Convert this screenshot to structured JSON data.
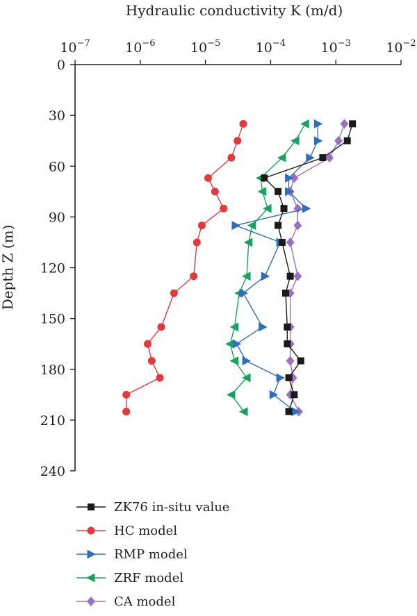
{
  "chart_data": {
    "type": "line",
    "xlabel": "Hydraulic conductivity K (m/d)",
    "ylabel": "Depth Z (m)",
    "x_scale": "log",
    "xlim": [
      1e-07,
      0.01
    ],
    "ylim": [
      0,
      240
    ],
    "y_inverted": true,
    "x_ticks": [
      {
        "base": "10",
        "exp": "−7",
        "value": 1e-07
      },
      {
        "base": "10",
        "exp": "−6",
        "value": 1e-06
      },
      {
        "base": "10",
        "exp": "−5",
        "value": 1e-05
      },
      {
        "base": "10",
        "exp": "−4",
        "value": 0.0001
      },
      {
        "base": "10",
        "exp": "−3",
        "value": 0.001
      },
      {
        "base": "10",
        "exp": "−2",
        "value": 0.01
      }
    ],
    "y_ticks": [
      0,
      30,
      60,
      90,
      120,
      150,
      180,
      210,
      240
    ],
    "grid": false,
    "legend_position": "bottom-left",
    "series": [
      {
        "name": "ZK76 in-situ value",
        "color": "#1a1a1a",
        "marker": "square",
        "points": [
          {
            "depth": 35,
            "k": 0.0018
          },
          {
            "depth": 45,
            "k": 0.0015
          },
          {
            "depth": 55,
            "k": 0.00063
          },
          {
            "depth": 67,
            "k": 8e-05
          },
          {
            "depth": 75,
            "k": 0.00013
          },
          {
            "depth": 85,
            "k": 0.00016
          },
          {
            "depth": 95,
            "k": 0.00013
          },
          {
            "depth": 105,
            "k": 0.00015
          },
          {
            "depth": 125,
            "k": 0.0002
          },
          {
            "depth": 135,
            "k": 0.00017
          },
          {
            "depth": 155,
            "k": 0.00018
          },
          {
            "depth": 165,
            "k": 0.00018
          },
          {
            "depth": 175,
            "k": 0.00029
          },
          {
            "depth": 185,
            "k": 0.00019
          },
          {
            "depth": 195,
            "k": 0.00023
          },
          {
            "depth": 205,
            "k": 0.00019
          }
        ]
      },
      {
        "name": "HC model",
        "color": "#e8383b",
        "marker": "circle",
        "points": [
          {
            "depth": 35,
            "k": 3.8e-05
          },
          {
            "depth": 45,
            "k": 3.1e-05
          },
          {
            "depth": 55,
            "k": 2.5e-05
          },
          {
            "depth": 67,
            "k": 1.1e-05
          },
          {
            "depth": 75,
            "k": 1.4e-05
          },
          {
            "depth": 85,
            "k": 1.9e-05
          },
          {
            "depth": 95,
            "k": 8.8e-06
          },
          {
            "depth": 105,
            "k": 7.4e-06
          },
          {
            "depth": 125,
            "k": 6.6e-06
          },
          {
            "depth": 135,
            "k": 3.3e-06
          },
          {
            "depth": 155,
            "k": 2.1e-06
          },
          {
            "depth": 165,
            "k": 1.3e-06
          },
          {
            "depth": 175,
            "k": 1.5e-06
          },
          {
            "depth": 185,
            "k": 2e-06
          },
          {
            "depth": 195,
            "k": 6.1e-07
          },
          {
            "depth": 205,
            "k": 6.1e-07
          }
        ]
      },
      {
        "name": "RMP model",
        "color": "#2f6dbf",
        "marker": "triangle-right",
        "points": [
          {
            "depth": 35,
            "k": 0.00053
          },
          {
            "depth": 45,
            "k": 0.00053
          },
          {
            "depth": 55,
            "k": 0.0004
          },
          {
            "depth": 67,
            "k": 0.00019
          },
          {
            "depth": 75,
            "k": 0.00019
          },
          {
            "depth": 85,
            "k": 0.00035
          },
          {
            "depth": 95,
            "k": 2.9e-05
          },
          {
            "depth": 105,
            "k": 0.00014
          },
          {
            "depth": 125,
            "k": 8.2e-05
          },
          {
            "depth": 135,
            "k": 3.8e-05
          },
          {
            "depth": 155,
            "k": 7.5e-05
          },
          {
            "depth": 165,
            "k": 3e-05
          },
          {
            "depth": 175,
            "k": 4.2e-05
          },
          {
            "depth": 185,
            "k": 0.00014
          },
          {
            "depth": 195,
            "k": 0.00011
          },
          {
            "depth": 205,
            "k": 0.00024
          }
        ]
      },
      {
        "name": "ZRF model",
        "color": "#1aa260",
        "marker": "triangle-left",
        "points": [
          {
            "depth": 35,
            "k": 0.00034
          },
          {
            "depth": 45,
            "k": 0.00024
          },
          {
            "depth": 55,
            "k": 0.00015
          },
          {
            "depth": 67,
            "k": 7e-05
          },
          {
            "depth": 75,
            "k": 7.5e-05
          },
          {
            "depth": 85,
            "k": 9e-05
          },
          {
            "depth": 95,
            "k": 5.2e-05
          },
          {
            "depth": 105,
            "k": 4.6e-05
          },
          {
            "depth": 125,
            "k": 4.3e-05
          },
          {
            "depth": 135,
            "k": 3.3e-05
          },
          {
            "depth": 155,
            "k": 2.8e-05
          },
          {
            "depth": 165,
            "k": 2.4e-05
          },
          {
            "depth": 175,
            "k": 2.8e-05
          },
          {
            "depth": 185,
            "k": 4.3e-05
          },
          {
            "depth": 195,
            "k": 2.5e-05
          },
          {
            "depth": 205,
            "k": 3.9e-05
          }
        ]
      },
      {
        "name": "CA model",
        "color": "#9b6fc4",
        "marker": "diamond",
        "points": [
          {
            "depth": 35,
            "k": 0.00135
          },
          {
            "depth": 45,
            "k": 0.0011
          },
          {
            "depth": 55,
            "k": 0.0008
          },
          {
            "depth": 67,
            "k": 0.00023
          },
          {
            "depth": 75,
            "k": 0.0002
          },
          {
            "depth": 85,
            "k": 0.00026
          },
          {
            "depth": 95,
            "k": 0.00026
          },
          {
            "depth": 105,
            "k": 0.0002
          },
          {
            "depth": 125,
            "k": 0.00026
          },
          {
            "depth": 135,
            "k": 0.0002
          },
          {
            "depth": 155,
            "k": 0.0002
          },
          {
            "depth": 165,
            "k": 0.0002
          },
          {
            "depth": 175,
            "k": 0.0002
          },
          {
            "depth": 185,
            "k": 0.00022
          },
          {
            "depth": 195,
            "k": 0.0002
          },
          {
            "depth": 205,
            "k": 0.00027
          }
        ]
      }
    ]
  }
}
